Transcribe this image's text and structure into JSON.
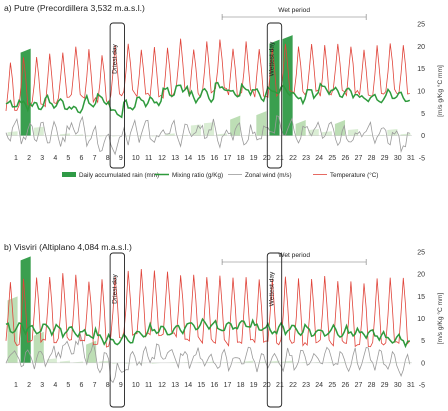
{
  "chart_data": [
    {
      "type": "line",
      "title": "a) Putre (Precordillera 3,532 m.a.s.l.)",
      "x": [
        1,
        2,
        3,
        4,
        5,
        6,
        7,
        8,
        9,
        10,
        11,
        12,
        13,
        14,
        15,
        16,
        17,
        18,
        19,
        20,
        21,
        22,
        23,
        24,
        25,
        26,
        27,
        28,
        29,
        30,
        31
      ],
      "xlim": [
        0.5,
        31.5
      ],
      "ylim": [
        -5,
        25
      ],
      "yticks": [
        25,
        20,
        15,
        10,
        5,
        0,
        -5
      ],
      "ylabel": "[m/s g/Kg °C mm]",
      "annotations": {
        "driest": "Driest day",
        "wettest": "Wettest day",
        "wet_period": "Wet period"
      },
      "driest_day": 9,
      "wettest_day": 21,
      "wet_period": [
        17,
        28
      ],
      "series": [
        {
          "name": "Daily accumulated rain (mm)",
          "kind": "area",
          "values": [
            1,
            19.5,
            2,
            0.2,
            0.5,
            0.3,
            0,
            0,
            0,
            0,
            0,
            0,
            0.5,
            0.2,
            2.5,
            3,
            0.5,
            4.5,
            0.2,
            5.5,
            21.5,
            22.5,
            3.5,
            1.5,
            1,
            3.5,
            1.5,
            0.2,
            0.2,
            1.5,
            0.5
          ]
        },
        {
          "name": "Mixing ratio (g/Kg)",
          "kind": "line",
          "values": [
            7,
            7,
            6.5,
            7.5,
            7,
            6,
            7.5,
            8.5,
            5,
            6.5,
            8,
            7.5,
            10,
            11,
            8.5,
            9,
            11,
            9.5,
            10.5,
            9,
            10,
            10,
            8.5,
            9.5,
            10.5,
            9.5,
            9.5,
            8.5,
            8,
            9,
            8.5
          ]
        },
        {
          "name": "Zonal wind (m/s)",
          "kind": "line",
          "values": [
            1,
            0.5,
            1.5,
            1,
            0,
            2,
            0,
            -1,
            -2,
            0.5,
            1,
            -0.5,
            1,
            0.5,
            1,
            1,
            0,
            1,
            0,
            0.5,
            2,
            1,
            0,
            1,
            0.5,
            0,
            -0.5,
            1,
            0.5,
            0,
            -1
          ]
        },
        {
          "name": "Temperature (°C)",
          "kind": "line",
          "values": [
            11,
            11.5,
            12,
            12,
            13,
            14,
            13,
            12.5,
            14,
            15,
            14,
            13.5,
            14,
            15.5,
            14,
            15,
            15.5,
            14,
            15,
            14,
            14,
            15,
            14.5,
            15,
            14,
            15,
            14.5,
            14,
            14,
            15,
            14.5
          ]
        }
      ]
    },
    {
      "type": "line",
      "title": "b) Visviri (Altiplano 4,084 m.a.s.l.)",
      "x": [
        1,
        2,
        3,
        4,
        5,
        6,
        7,
        8,
        9,
        10,
        11,
        12,
        13,
        14,
        15,
        16,
        17,
        18,
        19,
        20,
        21,
        22,
        23,
        24,
        25,
        26,
        27,
        28,
        29,
        30,
        31
      ],
      "xlim": [
        0.5,
        31.5
      ],
      "ylim": [
        -5,
        25
      ],
      "yticks": [
        25,
        20,
        15,
        10,
        5,
        0,
        -5
      ],
      "ylabel": "[m/s g/Kg °C mm]",
      "annotations": {
        "driest": "Driest day",
        "wettest": "Wettest day",
        "wet_period": "Wet period"
      },
      "driest_day": 9,
      "wettest_day": 21,
      "wet_period": [
        17,
        28
      ],
      "series": [
        {
          "name": "Daily accumulated rain (mm)",
          "kind": "area",
          "values": [
            15,
            24,
            7,
            1,
            0.5,
            0.3,
            5,
            0.5,
            0,
            0,
            0,
            0,
            0.2,
            0.2,
            0.2,
            0.3,
            0.2,
            0.2,
            0.5,
            0.3,
            0.5,
            0.5,
            0.2,
            0.2,
            0.2,
            0.2,
            0.2,
            0.2,
            0.2,
            0.2,
            0.2
          ]
        },
        {
          "name": "Mixing ratio (g/Kg)",
          "kind": "line",
          "values": [
            8,
            8,
            7.5,
            7.5,
            7,
            7,
            6.5,
            5.5,
            4.5,
            5.5,
            6.5,
            7.5,
            7.5,
            8,
            8.5,
            8.5,
            8,
            8.5,
            8.5,
            8,
            7.5,
            7.5,
            7.5,
            7,
            7,
            7,
            7,
            6.5,
            6,
            5.5,
            5
          ]
        },
        {
          "name": "Zonal wind (m/s)",
          "kind": "line",
          "values": [
            2,
            1,
            1.5,
            1,
            3,
            4,
            2,
            0,
            -2,
            0,
            1,
            2,
            2,
            1.5,
            1,
            1,
            0.5,
            0.5,
            1,
            0.5,
            0.5,
            1,
            0.5,
            1,
            1.5,
            0.5,
            0.5,
            1,
            0.5,
            0,
            -1
          ]
        },
        {
          "name": "Temperature (°C)",
          "kind": "line",
          "values": [
            11,
            11,
            11.5,
            11.5,
            12,
            12,
            11,
            10.5,
            12,
            13,
            13,
            13,
            13,
            12.5,
            12,
            11.5,
            11.5,
            11,
            11.5,
            11.5,
            11,
            11.5,
            11,
            11,
            11.5,
            11,
            10.5,
            10.5,
            11,
            11,
            11.5
          ]
        }
      ]
    }
  ],
  "colors": {
    "rain_fill": "#b9dcb1",
    "rain_fill_light": "#d8ecd2",
    "rain_fill_dark": "#2f9a46",
    "mixing": "#2e9a3c",
    "wind": "#9a9a9a",
    "temperature": "#e0443a"
  }
}
